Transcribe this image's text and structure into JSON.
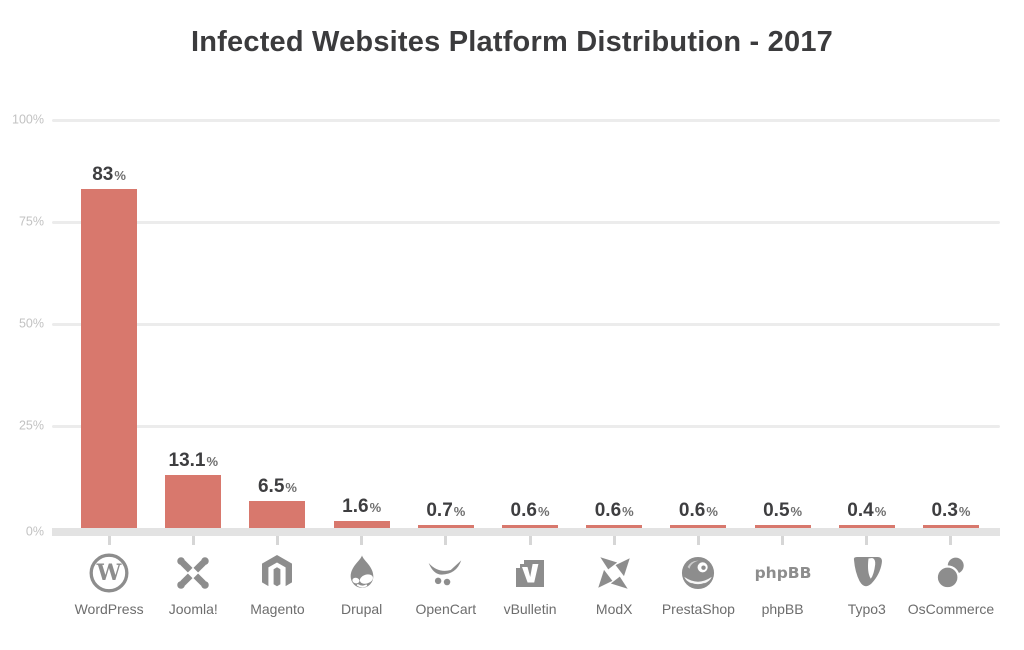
{
  "title": "Infected Websites Platform Distribution - 2017",
  "chart_data": {
    "type": "bar",
    "title": "Infected Websites Platform Distribution - 2017",
    "categories": [
      "WordPress",
      "Joomla!",
      "Magento",
      "Drupal",
      "OpenCart",
      "vBulletin",
      "ModX",
      "PrestaShop",
      "phpBB",
      "Typo3",
      "OsCommerce"
    ],
    "values": [
      83,
      13.1,
      6.5,
      1.6,
      0.7,
      0.6,
      0.6,
      0.6,
      0.5,
      0.4,
      0.3
    ],
    "value_labels": [
      "83%",
      "13.1%",
      "6.5%",
      "1.6%",
      "0.7%",
      "0.6%",
      "0.6%",
      "0.6%",
      "0.5%",
      "0.4%",
      "0.3%"
    ],
    "unit": "%",
    "icons": [
      "wordpress-icon",
      "joomla-icon",
      "magento-icon",
      "drupal-icon",
      "opencart-icon",
      "vbulletin-icon",
      "modx-icon",
      "prestashop-icon",
      "phpbb-icon",
      "typo3-icon",
      "oscommerce-icon"
    ],
    "xlabel": "",
    "ylabel": "",
    "ylim": [
      0,
      100
    ],
    "y_ticks": [
      "100%",
      "75%",
      "50%",
      "25%",
      "0%"
    ],
    "grid": true,
    "legend": false,
    "colors": {
      "bar": "#d8786d",
      "title": "#3b3b3d",
      "value_number": "#3e3e40",
      "value_percent": "#6f6f6f",
      "y_tick_label": "#c2c2c2",
      "gridline": "#ececec",
      "axis_band": "#e3e3e3",
      "x_tick": "#d6d6d6",
      "icon": "#8d8d8d",
      "platform_label": "#6d6d6d"
    }
  }
}
